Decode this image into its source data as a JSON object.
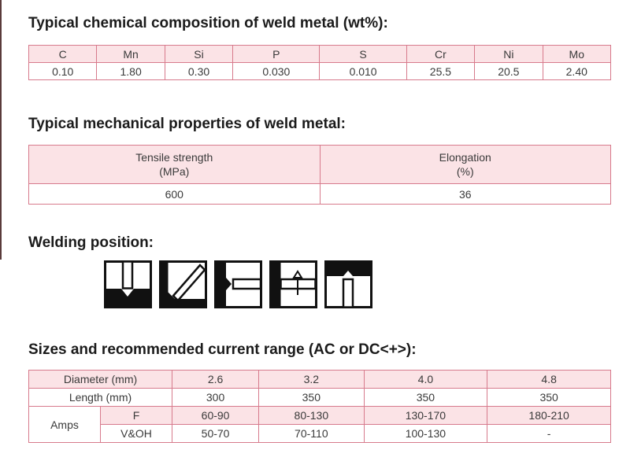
{
  "chemical": {
    "heading": "Typical chemical composition of weld metal (wt%):",
    "elements": [
      "C",
      "Mn",
      "Si",
      "P",
      "S",
      "Cr",
      "Ni",
      "Mo"
    ],
    "values": [
      "0.10",
      "1.80",
      "0.30",
      "0.030",
      "0.010",
      "25.5",
      "20.5",
      "2.40"
    ]
  },
  "mechanical": {
    "heading": "Typical mechanical properties of weld metal:",
    "tensile_label": "Tensile strength",
    "tensile_unit": "(MPa)",
    "elongation_label": "Elongation",
    "elongation_unit": "(%)",
    "tensile_value": "600",
    "elongation_value": "36"
  },
  "welding_position": {
    "heading": "Welding position:",
    "icons": [
      "flat-position-icon",
      "horizontal-fillet-position-icon",
      "horizontal-position-icon",
      "vertical-up-position-icon",
      "overhead-position-icon"
    ]
  },
  "sizes": {
    "heading": "Sizes and recommended current range (AC or DC<+>):",
    "diameter_label": "Diameter (mm)",
    "diameters": [
      "2.6",
      "3.2",
      "4.0",
      "4.8"
    ],
    "length_label": "Length (mm)",
    "lengths": [
      "300",
      "350",
      "350",
      "350"
    ],
    "amps_label": "Amps",
    "f_label": "F",
    "f_values": [
      "60-90",
      "80-130",
      "130-170",
      "180-210"
    ],
    "voh_label": "V&OH",
    "voh_values": [
      "50-70",
      "70-110",
      "100-130",
      "-"
    ]
  },
  "colors": {
    "header_fill": "#fbe3e6",
    "border": "#d77a8c",
    "heading_text": "#1b1b1b"
  }
}
